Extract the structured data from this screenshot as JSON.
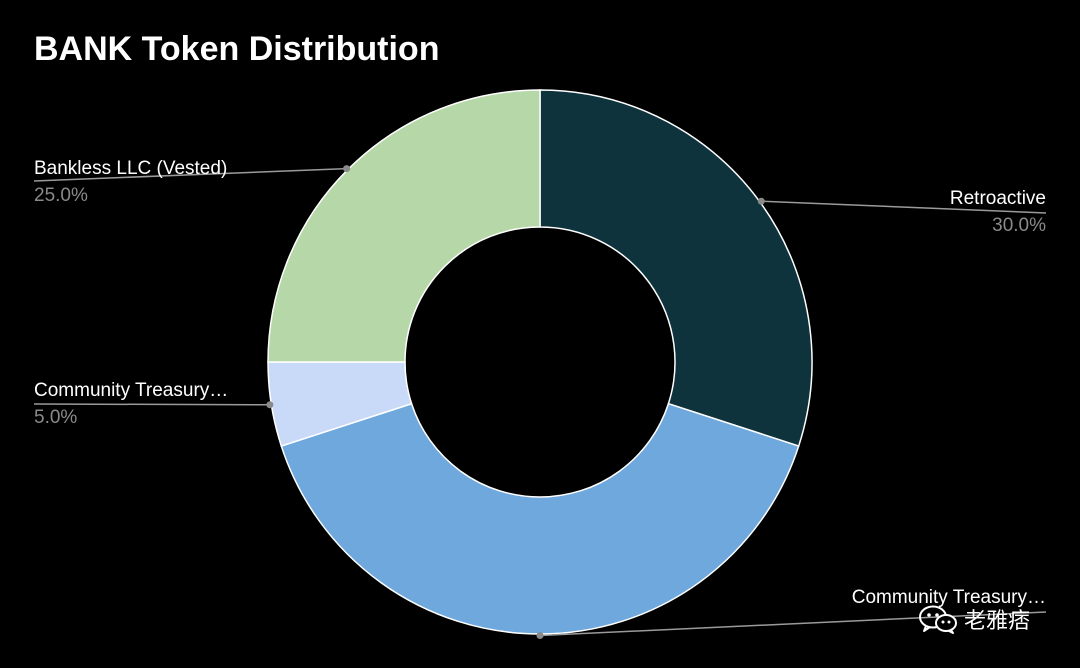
{
  "chart_data": {
    "type": "pie",
    "title": "BANK Token Distribution",
    "donut": true,
    "legend": "none",
    "slices": [
      {
        "label": "Retroactive",
        "value": 30.0,
        "pct_label": "30.0%",
        "color": "#0e333d"
      },
      {
        "label": "Community Treasury…",
        "value": 40.0,
        "pct_label": "",
        "color": "#6fa8dc"
      },
      {
        "label": "Community Treasury…",
        "value": 5.0,
        "pct_label": "5.0%",
        "color": "#c9daf8"
      },
      {
        "label": "Bankless LLC (Vested)",
        "value": 25.0,
        "pct_label": "25.0%",
        "color": "#b6d7a8"
      }
    ]
  },
  "watermark": {
    "text": "老雅痞",
    "icon": "wechat-icon"
  }
}
